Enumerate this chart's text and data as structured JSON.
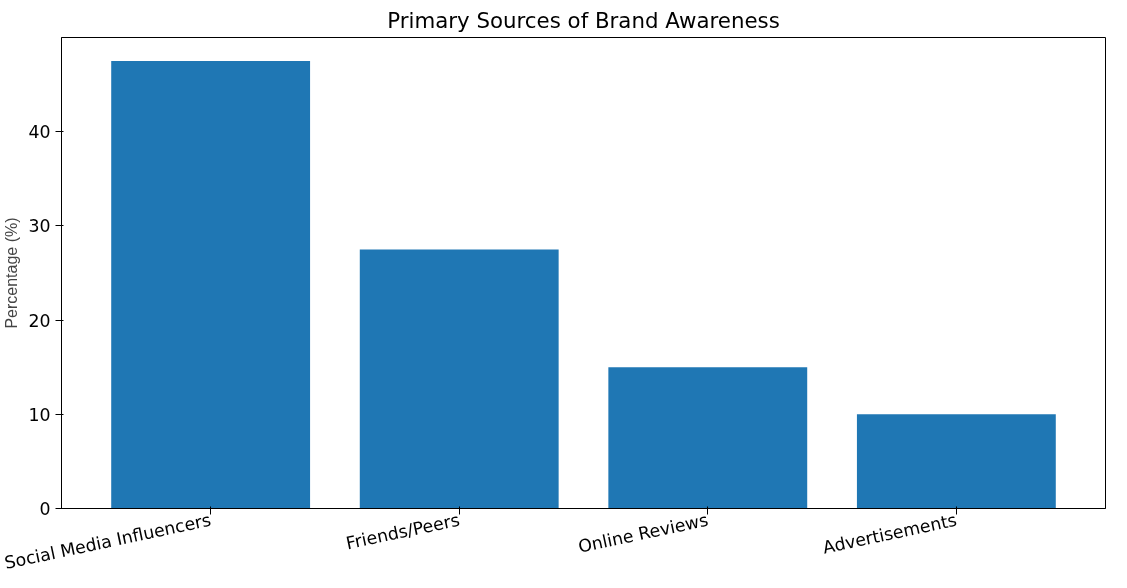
{
  "chart_data": {
    "type": "bar",
    "title": "Primary Sources of Brand Awareness",
    "ylabel": "Percentage (%)",
    "categories": [
      "Social Media Influencers",
      "Friends/Peers",
      "Online Reviews",
      "Advertisements"
    ],
    "values": [
      47.5,
      27.5,
      15,
      10
    ],
    "color": "#1f77b4",
    "ylim": [
      0,
      50
    ],
    "yticks": [
      0,
      10,
      20,
      30,
      40
    ],
    "grid": false
  }
}
